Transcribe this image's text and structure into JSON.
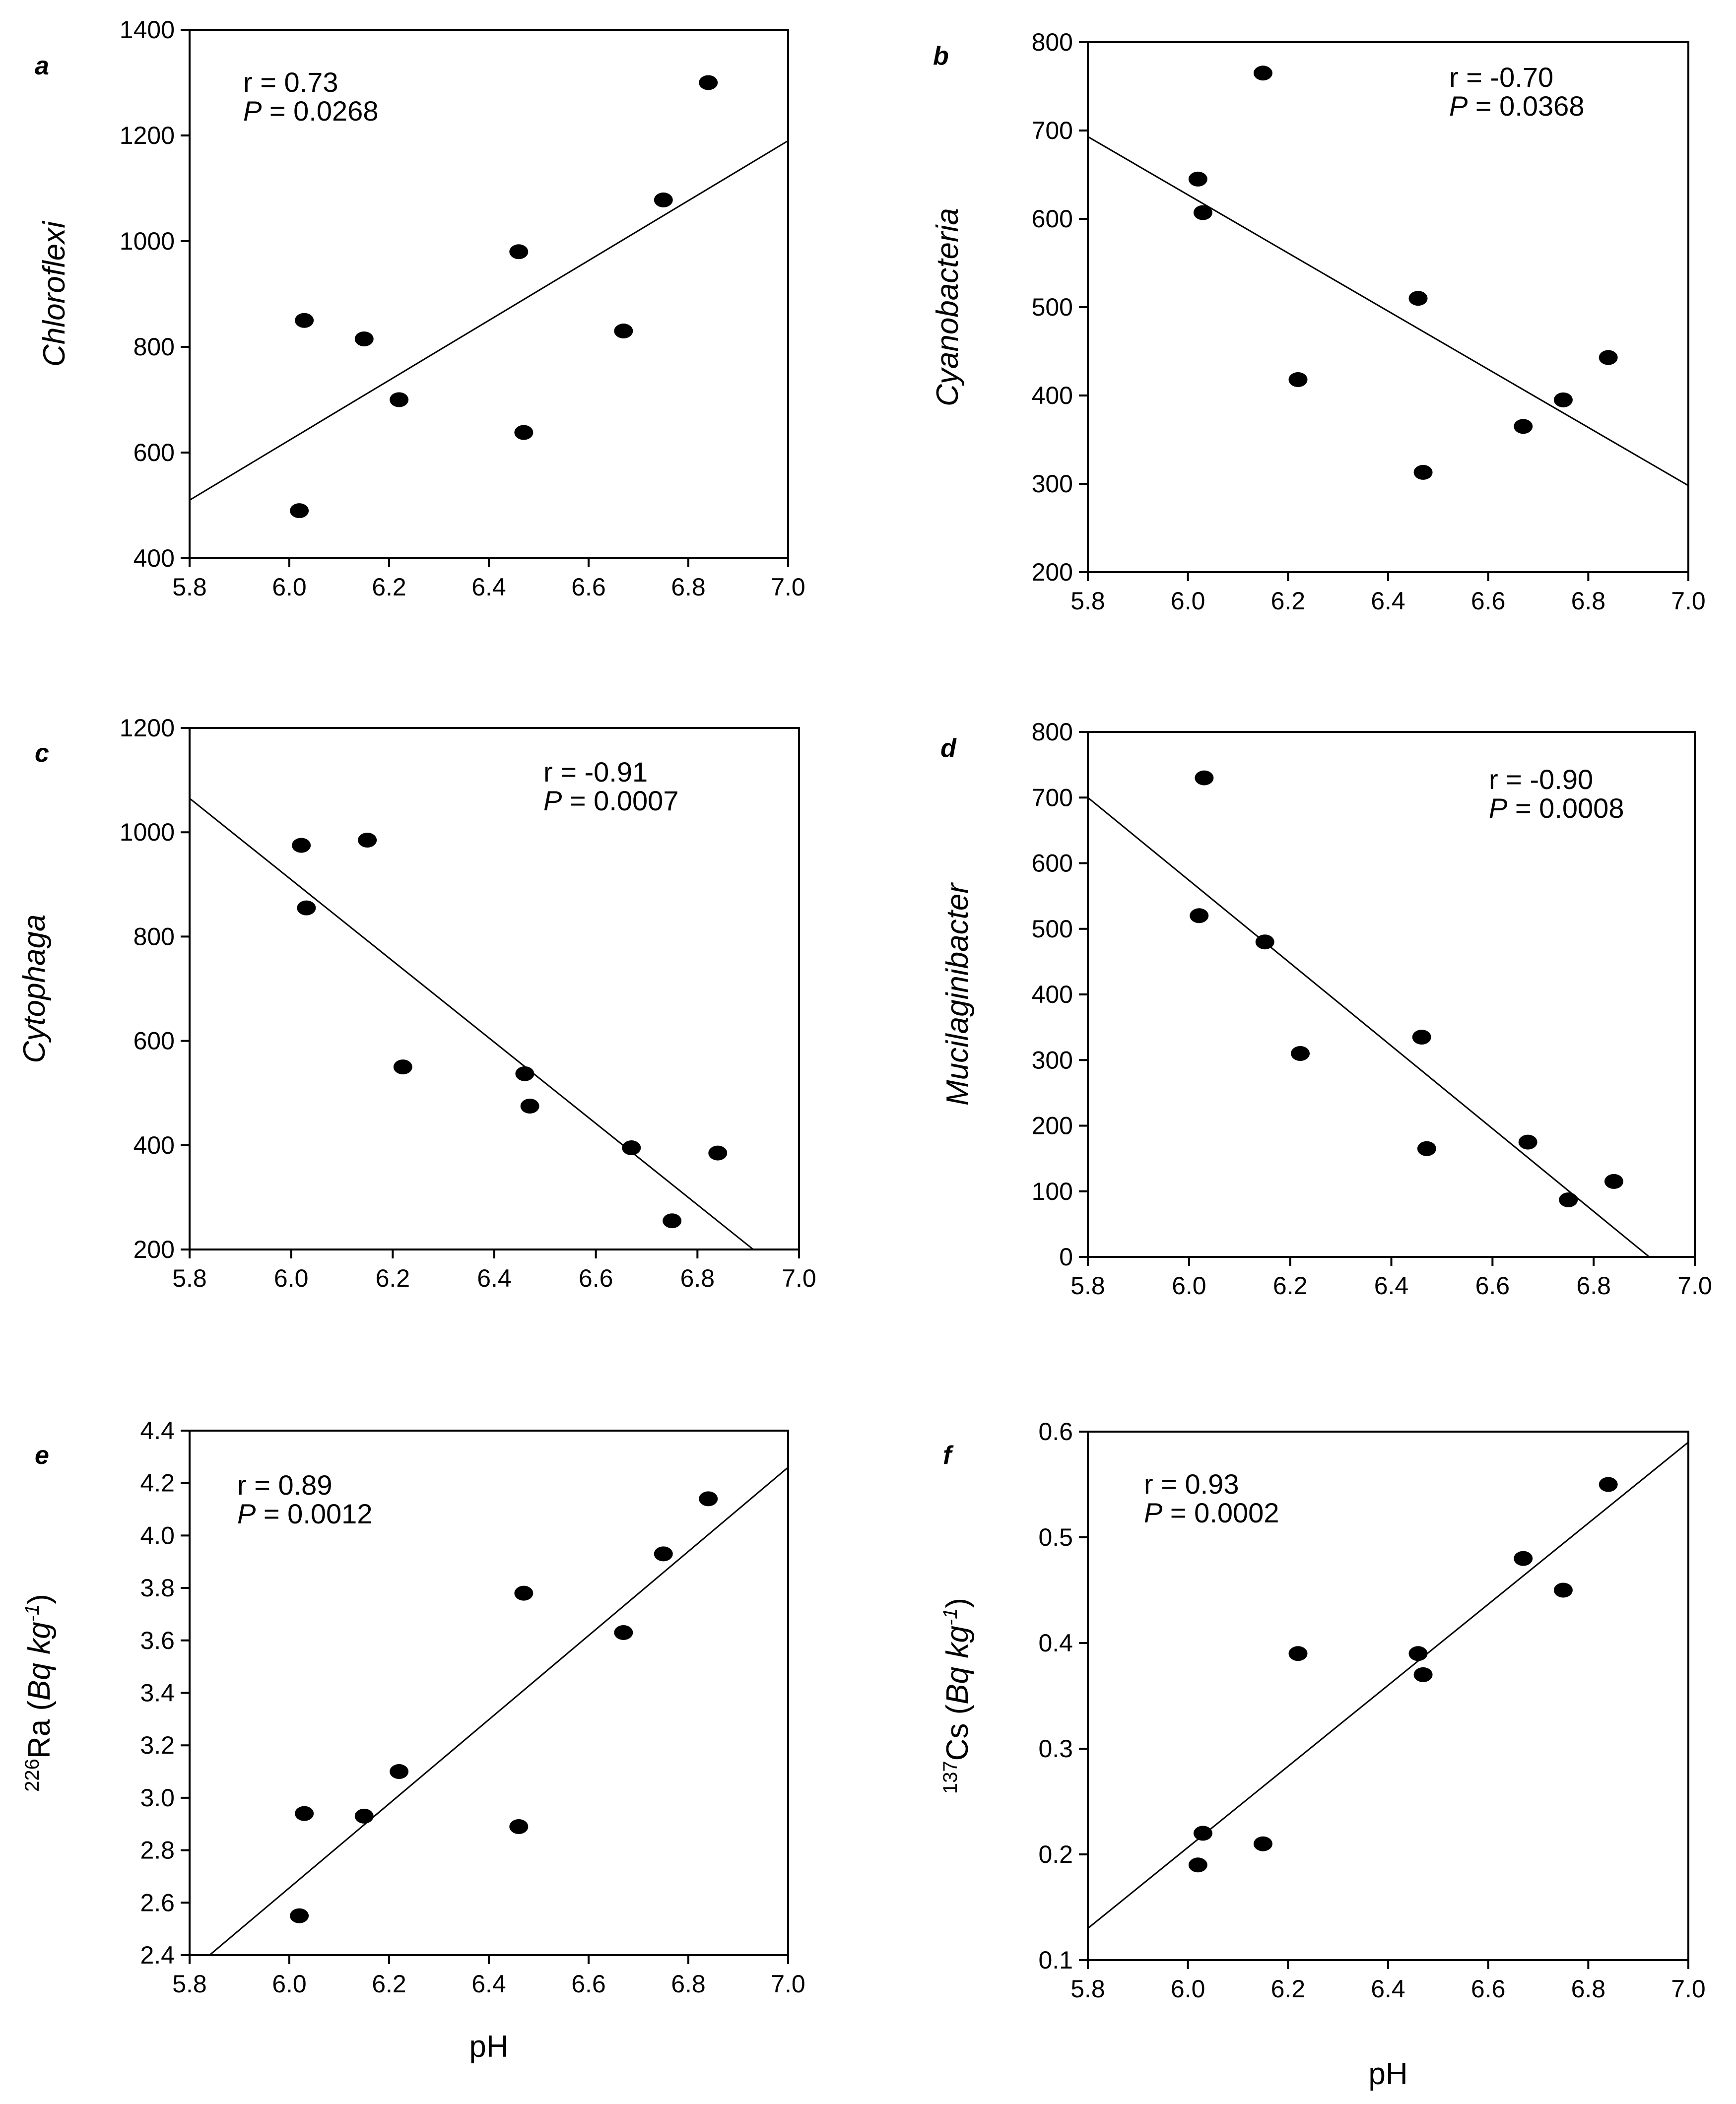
{
  "colors": {
    "background": "#ffffff",
    "ink": "#000000"
  },
  "chart_data": [
    {
      "type": "scatter",
      "panel": "a",
      "ylabel_parts": [
        {
          "t": "Chloroflexi",
          "italic": true
        }
      ],
      "xlabel": "",
      "xlim": [
        5.8,
        7.0
      ],
      "ylim": [
        400,
        1400
      ],
      "xticks": [
        "5.8",
        "6.0",
        "6.2",
        "6.4",
        "6.6",
        "6.8",
        "7.0"
      ],
      "yticks": [
        "400",
        "600",
        "800",
        "1000",
        "1200",
        "1400"
      ],
      "stats": {
        "r": "r = 0.73",
        "p_label": "P",
        "p_value": " = 0.0268"
      },
      "points": [
        {
          "x": 6.02,
          "y": 490
        },
        {
          "x": 6.03,
          "y": 850
        },
        {
          "x": 6.15,
          "y": 815
        },
        {
          "x": 6.22,
          "y": 700
        },
        {
          "x": 6.46,
          "y": 980
        },
        {
          "x": 6.47,
          "y": 638
        },
        {
          "x": 6.67,
          "y": 830
        },
        {
          "x": 6.75,
          "y": 1078
        },
        {
          "x": 6.84,
          "y": 1300
        }
      ],
      "fit": {
        "x": [
          5.8,
          7.0
        ],
        "y": [
          510,
          1190
        ]
      }
    },
    {
      "type": "scatter",
      "panel": "b",
      "ylabel_parts": [
        {
          "t": "Cyanobacteria",
          "italic": true
        }
      ],
      "xlabel": "",
      "xlim": [
        5.8,
        7.0
      ],
      "ylim": [
        200,
        800
      ],
      "xticks": [
        "5.8",
        "6.0",
        "6.2",
        "6.4",
        "6.6",
        "6.8",
        "7.0"
      ],
      "yticks": [
        "200",
        "300",
        "400",
        "500",
        "600",
        "700",
        "800"
      ],
      "stats": {
        "r": "r = -0.70",
        "p_label": "P",
        "p_value": " = 0.0368"
      },
      "points": [
        {
          "x": 6.02,
          "y": 645
        },
        {
          "x": 6.03,
          "y": 607
        },
        {
          "x": 6.15,
          "y": 765
        },
        {
          "x": 6.22,
          "y": 418
        },
        {
          "x": 6.46,
          "y": 510
        },
        {
          "x": 6.47,
          "y": 313
        },
        {
          "x": 6.67,
          "y": 365
        },
        {
          "x": 6.75,
          "y": 395
        },
        {
          "x": 6.84,
          "y": 443
        }
      ],
      "fit": {
        "x": [
          5.8,
          7.0
        ],
        "y": [
          693,
          298
        ]
      }
    },
    {
      "type": "scatter",
      "panel": "c",
      "ylabel_parts": [
        {
          "t": "Cytophaga",
          "italic": true
        }
      ],
      "xlabel": "",
      "xlim": [
        5.8,
        7.0
      ],
      "ylim": [
        200,
        1200
      ],
      "xticks": [
        "5.8",
        "6.0",
        "6.2",
        "6.4",
        "6.6",
        "6.8",
        "7.0"
      ],
      "yticks": [
        "200",
        "400",
        "600",
        "800",
        "1000",
        "1200"
      ],
      "stats": {
        "r": "r = -0.91",
        "p_label": "P",
        "p_value": " = 0.0007"
      },
      "points": [
        {
          "x": 6.02,
          "y": 975
        },
        {
          "x": 6.03,
          "y": 855
        },
        {
          "x": 6.15,
          "y": 985
        },
        {
          "x": 6.22,
          "y": 550
        },
        {
          "x": 6.46,
          "y": 537
        },
        {
          "x": 6.47,
          "y": 475
        },
        {
          "x": 6.67,
          "y": 395
        },
        {
          "x": 6.75,
          "y": 255
        },
        {
          "x": 6.84,
          "y": 385
        }
      ],
      "fit": {
        "x": [
          5.8,
          6.91
        ],
        "y": [
          1065,
          200
        ]
      }
    },
    {
      "type": "scatter",
      "panel": "d",
      "ylabel_parts": [
        {
          "t": "Mucilaginibacter",
          "italic": true
        }
      ],
      "xlabel": "",
      "xlim": [
        5.8,
        7.0
      ],
      "ylim": [
        0,
        800
      ],
      "xticks": [
        "5.8",
        "6.0",
        "6.2",
        "6.4",
        "6.6",
        "6.8",
        "7.0"
      ],
      "yticks": [
        "0",
        "100",
        "200",
        "300",
        "400",
        "500",
        "600",
        "700",
        "800"
      ],
      "stats": {
        "r": "r = -0.90",
        "p_label": "P",
        "p_value": " = 0.0008"
      },
      "points": [
        {
          "x": 6.02,
          "y": 520
        },
        {
          "x": 6.03,
          "y": 730
        },
        {
          "x": 6.15,
          "y": 480
        },
        {
          "x": 6.22,
          "y": 310
        },
        {
          "x": 6.46,
          "y": 335
        },
        {
          "x": 6.47,
          "y": 165
        },
        {
          "x": 6.67,
          "y": 175
        },
        {
          "x": 6.75,
          "y": 87
        },
        {
          "x": 6.84,
          "y": 115
        }
      ],
      "fit": {
        "x": [
          5.8,
          6.91
        ],
        "y": [
          700,
          0
        ]
      }
    },
    {
      "type": "scatter",
      "panel": "e",
      "ylabel_parts": [
        {
          "t": "226",
          "sup": true
        },
        {
          "t": "Ra ("
        },
        {
          "t": "Bq kg",
          "italic": true
        },
        {
          "t": "-1",
          "sup": true,
          "italic": true
        },
        {
          "t": ")"
        }
      ],
      "xlabel": "pH",
      "xlim": [
        5.8,
        7.0
      ],
      "ylim": [
        2.4,
        4.4
      ],
      "xticks": [
        "5.8",
        "6.0",
        "6.2",
        "6.4",
        "6.6",
        "6.8",
        "7.0"
      ],
      "yticks": [
        "2.4",
        "2.6",
        "2.8",
        "3.0",
        "3.2",
        "3.4",
        "3.6",
        "3.8",
        "4.0",
        "4.2",
        "4.4"
      ],
      "stats": {
        "r": "r = 0.89",
        "p_label": "P",
        "p_value": " = 0.0012"
      },
      "points": [
        {
          "x": 6.02,
          "y": 2.55
        },
        {
          "x": 6.03,
          "y": 2.94
        },
        {
          "x": 6.15,
          "y": 2.93
        },
        {
          "x": 6.22,
          "y": 3.1
        },
        {
          "x": 6.46,
          "y": 2.89
        },
        {
          "x": 6.47,
          "y": 3.78
        },
        {
          "x": 6.67,
          "y": 3.63
        },
        {
          "x": 6.75,
          "y": 3.93
        },
        {
          "x": 6.84,
          "y": 4.14
        }
      ],
      "fit": {
        "x": [
          5.84,
          7.0
        ],
        "y": [
          2.4,
          4.26
        ]
      }
    },
    {
      "type": "scatter",
      "panel": "f",
      "ylabel_parts": [
        {
          "t": "137",
          "sup": true
        },
        {
          "t": "Cs ("
        },
        {
          "t": "Bq kg",
          "italic": true
        },
        {
          "t": "-1",
          "sup": true,
          "italic": true
        },
        {
          "t": ")"
        }
      ],
      "xlabel": "pH",
      "xlim": [
        5.8,
        7.0
      ],
      "ylim": [
        0.1,
        0.6
      ],
      "xticks": [
        "5.8",
        "6.0",
        "6.2",
        "6.4",
        "6.6",
        "6.8",
        "7.0"
      ],
      "yticks": [
        "0.1",
        "0.2",
        "0.3",
        "0.4",
        "0.5",
        "0.6"
      ],
      "stats": {
        "r": "r = 0.93",
        "p_label": "P",
        "p_value": " = 0.0002"
      },
      "points": [
        {
          "x": 6.02,
          "y": 0.19
        },
        {
          "x": 6.03,
          "y": 0.22
        },
        {
          "x": 6.15,
          "y": 0.21
        },
        {
          "x": 6.22,
          "y": 0.39
        },
        {
          "x": 6.46,
          "y": 0.39
        },
        {
          "x": 6.47,
          "y": 0.37
        },
        {
          "x": 6.67,
          "y": 0.48
        },
        {
          "x": 6.75,
          "y": 0.45
        },
        {
          "x": 6.84,
          "y": 0.55
        }
      ],
      "fit": {
        "x": [
          5.8,
          7.0
        ],
        "y": [
          0.13,
          0.59
        ]
      }
    }
  ]
}
